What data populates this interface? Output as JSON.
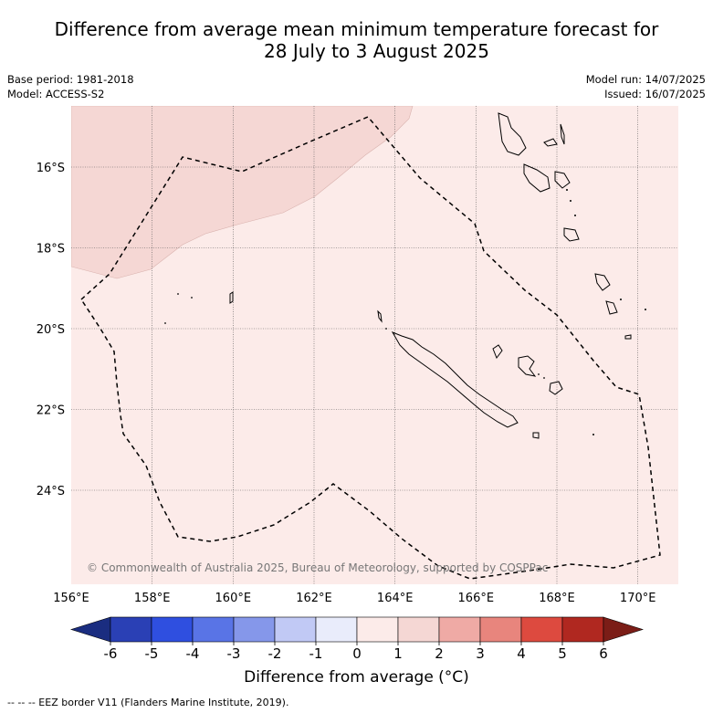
{
  "title_line1": "Difference from average mean minimum temperature forecast for",
  "title_line2": "28 July to 3 August 2025",
  "meta": {
    "base_period": "Base period: 1981-2018",
    "model": "Model: ACCESS-S2",
    "model_run": "Model run: 14/07/2025",
    "issued": "Issued: 16/07/2025"
  },
  "map": {
    "lon_labels": [
      "156°E",
      "158°E",
      "160°E",
      "162°E",
      "164°E",
      "166°E",
      "168°E",
      "170°E"
    ],
    "lat_labels": [
      "16°S",
      "18°S",
      "20°S",
      "22°S",
      "24°S"
    ],
    "copyright": "© Commonwealth of Australia 2025, Bureau of Meteorology, supported by COSPPac",
    "region_colors": {
      "warm_0_1": "#fcebe9",
      "warm_1_2": "#f5d7d4"
    }
  },
  "colorbar": {
    "ticks": [
      "-6",
      "-5",
      "-4",
      "-3",
      "-2",
      "-1",
      "0",
      "1",
      "2",
      "3",
      "4",
      "5",
      "6"
    ],
    "colors": [
      "#1a2d80",
      "#2a40b5",
      "#2f4fe0",
      "#5974e6",
      "#8597ea",
      "#c1c9f5",
      "#e9ecfb",
      "#fcebe9",
      "#f5d7d4",
      "#efaaa5",
      "#e8857d",
      "#dd4a3f",
      "#b02820",
      "#7b1d17"
    ],
    "label": "Difference from average (°C)"
  },
  "footer": "--  --  -- EEZ border V11 (Flanders Marine Institute, 2019)."
}
